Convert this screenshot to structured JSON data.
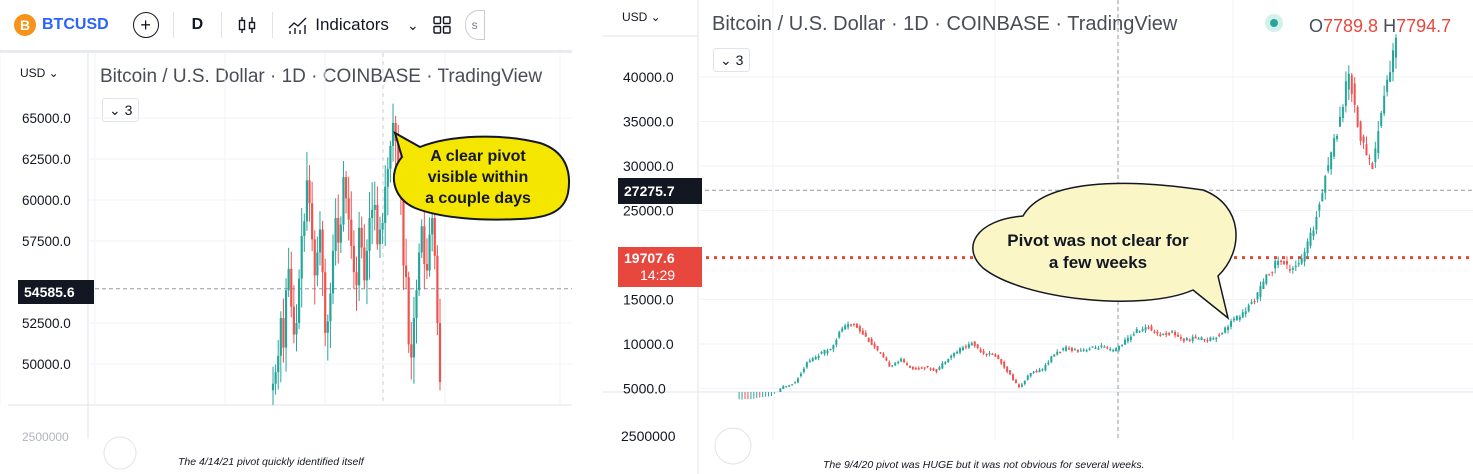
{
  "left": {
    "toolbar": {
      "symbol": "BTCUSD",
      "interval": "D",
      "indicators_label": "Indicators",
      "btc_glyph": "B"
    },
    "currency": "USD",
    "title": "Bitcoin / U.S. Dollar · 1D · COINBASE · TradingView",
    "collapse_count": "3",
    "price_ticks": [
      "65000.0",
      "62500.0",
      "60000.0",
      "57500.0",
      "52500.0",
      "50000.0"
    ],
    "bottom_cut_label": "2500000",
    "current_price_tag": "54585.6",
    "callout": [
      "A clear pivot",
      "visible within",
      "a couple days"
    ],
    "caption": "The 4/14/21 pivot quickly identified itself"
  },
  "right": {
    "currency": "USD",
    "title": "Bitcoin / U.S. Dollar · 1D · COINBASE · TradingView",
    "ohlc_o_label": "O",
    "ohlc_o_value": "7789.8",
    "ohlc_h_label": "H",
    "ohlc_h_value": "7794.7",
    "collapse_count": "3",
    "price_ticks": [
      "40000.0",
      "35000.0",
      "30000.0",
      "25000.0",
      "15000.0",
      "10000.0",
      "5000.0"
    ],
    "volume_label": "2500000",
    "crosshair_price_tag": "27275.7",
    "last_price_tag": "19707.6",
    "countdown": "14:29",
    "callout": [
      "Pivot was not clear for",
      "a few weeks"
    ],
    "caption": "The 9/4/20 pivot was HUGE but it was not obvious for several weeks."
  },
  "colors": {
    "up": "#26a69a",
    "down": "#ef5350",
    "callout_left": "#f5e600",
    "callout_right": "#fbf6c6",
    "price_line": "#e8473e",
    "crosshair_tag": "#131722"
  },
  "chart_data": [
    {
      "type": "candlestick",
      "title": "Bitcoin / U.S. Dollar · 1D · COINBASE · TradingView",
      "ylabel": "USD",
      "ylim": [
        48000,
        66000
      ],
      "current_price": 54585.6,
      "series": [
        {
          "name": "BTCUSD",
          "approx_close": [
            48800,
            49500,
            50500,
            52800,
            51000,
            54500,
            55800,
            53500,
            51800,
            52500,
            55200,
            57800,
            58700,
            61200,
            59800,
            57600,
            55400,
            56800,
            58200,
            55600,
            51900,
            52600,
            54300,
            56900,
            58900,
            57400,
            58500,
            61400,
            60100,
            58800,
            57200,
            55600,
            54800,
            58300,
            57100,
            55100,
            56900,
            58900,
            59400,
            59700,
            57300,
            58200,
            58600,
            60800,
            61900,
            63300,
            64700,
            63600,
            61900,
            60100,
            56000,
            55300,
            51200,
            50400,
            52800,
            54500,
            56800,
            58400,
            56100,
            55700,
            57900,
            58900,
            56600,
            52500,
            48900
          ]
        }
      ],
      "annotation": "A clear pivot visible within a couple days"
    },
    {
      "type": "candlestick",
      "title": "Bitcoin / U.S. Dollar · 1D · COINBASE · TradingView",
      "ylabel": "USD",
      "ylim": [
        4000,
        44500
      ],
      "crosshair_price": 27275.7,
      "last_price": 19707.6,
      "series": [
        {
          "name": "BTCUSD",
          "approx_close": [
            3700,
            3900,
            4000,
            5200,
            5700,
            7900,
            8800,
            9500,
            11800,
            12300,
            10800,
            9200,
            7600,
            8200,
            7200,
            7400,
            7000,
            8500,
            9400,
            10100,
            9000,
            8700,
            7000,
            5100,
            6700,
            7200,
            8900,
            9500,
            9300,
            9500,
            9700,
            9200,
            10300,
            11500,
            11800,
            11000,
            11300,
            10400,
            10700,
            10500,
            11000,
            12500,
            13400,
            15000,
            17500,
            19500,
            18500,
            19400,
            23000,
            29000,
            34000,
            40500,
            33000,
            30000,
            38000,
            44000
          ]
        }
      ],
      "annotation": "Pivot was not clear for a few weeks"
    }
  ]
}
